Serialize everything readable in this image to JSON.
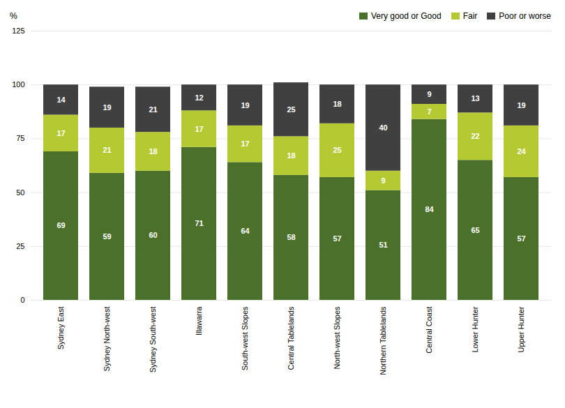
{
  "chart_data": {
    "type": "bar",
    "stacked": true,
    "ylabel": "%",
    "categories": [
      "Sydney East",
      "Sydney North-west",
      "Sydney South-west",
      "Illawarra",
      "South-west Slopes",
      "Central Tablelands",
      "North-west Slopes",
      "Northern Tablelands",
      "Central Coast",
      "Lower Hunter",
      "Upper Hunter"
    ],
    "series": [
      {
        "name": "Very good or Good",
        "color": "#4a7029",
        "values": [
          69,
          59,
          60,
          71,
          64,
          58,
          57,
          51,
          84,
          65,
          57
        ]
      },
      {
        "name": "Fair",
        "color": "#b5c932",
        "values": [
          17,
          21,
          18,
          17,
          17,
          18,
          25,
          9,
          7,
          22,
          24
        ]
      },
      {
        "name": "Poor or worse",
        "color": "#404040",
        "values": [
          14,
          19,
          21,
          12,
          19,
          25,
          18,
          40,
          9,
          13,
          19
        ]
      }
    ],
    "ylim": [
      0,
      125
    ],
    "yticks": [
      0,
      25,
      50,
      75,
      100,
      125
    ],
    "grid": true,
    "legend": "upper right",
    "data_labels": true
  }
}
